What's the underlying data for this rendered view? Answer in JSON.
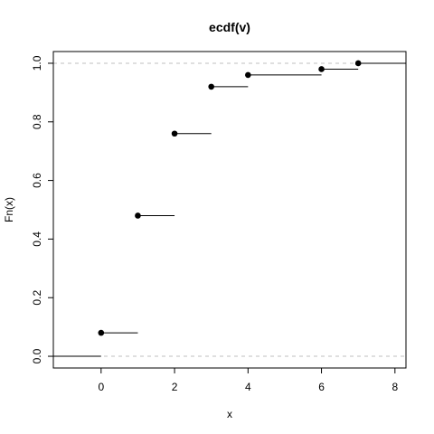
{
  "chart_data": {
    "type": "step",
    "title": "ecdf(v)",
    "xlabel": "x",
    "ylabel": "Fn(x)",
    "xlim": [
      -1.3,
      8.3
    ],
    "ylim": [
      -0.04,
      1.04
    ],
    "x_ticks": [
      0,
      2,
      4,
      6,
      8
    ],
    "x_tick_labels": [
      "0",
      "2",
      "4",
      "6",
      "8"
    ],
    "y_ticks": [
      0.0,
      0.2,
      0.4,
      0.6,
      0.8,
      1.0
    ],
    "y_tick_labels": [
      "0.0",
      "0.2",
      "0.4",
      "0.6",
      "0.8",
      "1.0"
    ],
    "reference_lines": [
      0,
      1
    ],
    "points": [
      {
        "x": 0,
        "y": 0.08
      },
      {
        "x": 1,
        "y": 0.48
      },
      {
        "x": 2,
        "y": 0.76
      },
      {
        "x": 3,
        "y": 0.92
      },
      {
        "x": 4,
        "y": 0.96
      },
      {
        "x": 6,
        "y": 0.98
      },
      {
        "x": 7,
        "y": 1.0
      }
    ]
  }
}
